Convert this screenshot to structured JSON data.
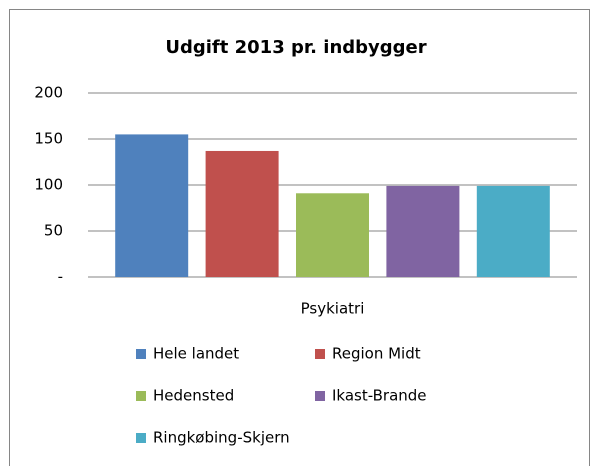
{
  "chart_data": {
    "type": "bar",
    "title": "Udgift 2013 pr. indbygger",
    "categories": [
      "Psykiatri"
    ],
    "series": [
      {
        "name": "Hele landet",
        "color": "#4f81bd",
        "values": [
          155
        ]
      },
      {
        "name": "Region Midt",
        "color": "#c0504d",
        "values": [
          137
        ]
      },
      {
        "name": "Hedensted",
        "color": "#9bbb59",
        "values": [
          91
        ]
      },
      {
        "name": "Ikast-Brande",
        "color": "#8064a2",
        "values": [
          99
        ]
      },
      {
        "name": "Ringkøbing-Skjern",
        "color": "#4bacc6",
        "values": [
          99
        ]
      }
    ],
    "ylim": [
      0,
      200
    ],
    "yticks": [
      {
        "value": 0,
        "label": "-"
      },
      50,
      100,
      150,
      200
    ],
    "grid": true,
    "legend": "bottom"
  }
}
